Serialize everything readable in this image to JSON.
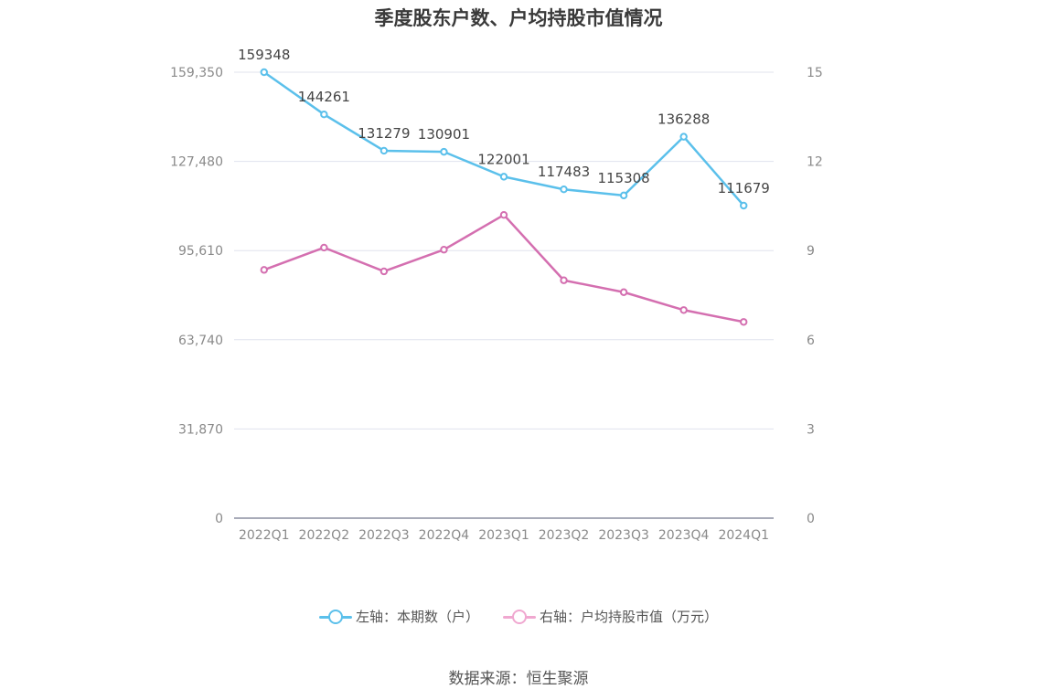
{
  "chart_data": {
    "type": "line",
    "title": "季度股东户数、户均持股市值情况",
    "categories": [
      "2022Q1",
      "2022Q2",
      "2022Q3",
      "2022Q4",
      "2023Q1",
      "2023Q2",
      "2023Q3",
      "2023Q4",
      "2024Q1"
    ],
    "left_axis": {
      "ticks": [
        "0",
        "31,870",
        "63,740",
        "95,610",
        "127,480",
        "159,350"
      ],
      "range": [
        0,
        159350
      ]
    },
    "right_axis": {
      "ticks": [
        "0",
        "3",
        "6",
        "9",
        "12",
        "15"
      ],
      "range": [
        0,
        15
      ]
    },
    "series": [
      {
        "name": "左轴：本期数（户）",
        "axis": "left",
        "color": "#5bc0eb",
        "values": [
          159348,
          144261,
          131279,
          130901,
          122001,
          117483,
          115308,
          136288,
          111679
        ],
        "labels": [
          "159348",
          "144261",
          "131279",
          "130901",
          "122001",
          "117483",
          "115308",
          "136288",
          "111679"
        ]
      },
      {
        "name": "右轴：户均持股市值（万元）",
        "axis": "right",
        "color": "#d46fb0",
        "values": [
          8.35,
          9.1,
          8.3,
          9.03,
          10.2,
          8.0,
          7.6,
          7.0,
          6.6
        ]
      }
    ],
    "grid": true,
    "legend_position": "bottom"
  },
  "legend_colors": {
    "left": "#5bc0eb",
    "right": "#f0a8d0"
  },
  "source": "数据来源：恒生聚源"
}
